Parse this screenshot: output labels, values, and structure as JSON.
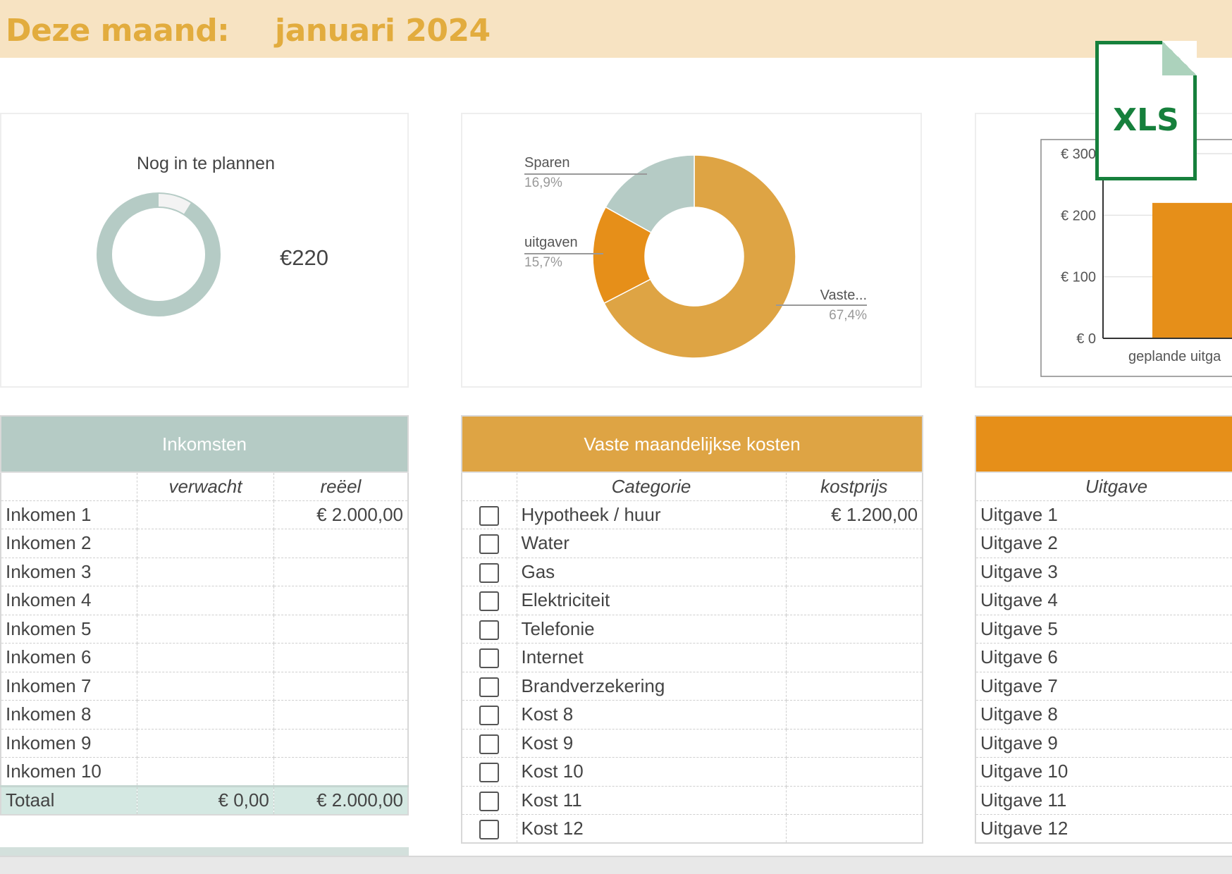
{
  "header": {
    "label": "Deze maand:",
    "month": "januari 2024"
  },
  "icon": {
    "file_type": "XLS",
    "name": "xls-file-icon"
  },
  "card_planning": {
    "title": "Nog in te plannen",
    "amount": "€220",
    "remaining_fraction": 0.089
  },
  "chart_data": [
    {
      "type": "pie",
      "donut": true,
      "categories": [
        "Vaste...",
        "uitgaven",
        "Sparen"
      ],
      "values": [
        67.4,
        15.7,
        16.9
      ],
      "labels": [
        "67,4%",
        "15,7%",
        "16,9%"
      ],
      "colors": [
        "#dea444",
        "#e68f19",
        "#b5cbc5"
      ]
    },
    {
      "type": "bar",
      "categories": [
        "geplande uitga"
      ],
      "values": [
        220
      ],
      "yticks": [
        "€ 0",
        "€ 100",
        "€ 200",
        "€ 300"
      ],
      "ylim": [
        0,
        300
      ],
      "color": "#e68f19"
    }
  ],
  "income": {
    "title": "Inkomsten",
    "col_expected": "verwacht",
    "col_real": "reëel",
    "rows": [
      {
        "name": "Inkomen 1",
        "expected": "",
        "real": "€ 2.000,00"
      },
      {
        "name": "Inkomen 2",
        "expected": "",
        "real": ""
      },
      {
        "name": "Inkomen 3",
        "expected": "",
        "real": ""
      },
      {
        "name": "Inkomen 4",
        "expected": "",
        "real": ""
      },
      {
        "name": "Inkomen 5",
        "expected": "",
        "real": ""
      },
      {
        "name": "Inkomen 6",
        "expected": "",
        "real": ""
      },
      {
        "name": "Inkomen 7",
        "expected": "",
        "real": ""
      },
      {
        "name": "Inkomen 8",
        "expected": "",
        "real": ""
      },
      {
        "name": "Inkomen 9",
        "expected": "",
        "real": ""
      },
      {
        "name": "Inkomen 10",
        "expected": "",
        "real": ""
      }
    ],
    "total": {
      "name": "Totaal",
      "expected": "€ 0,00",
      "real": "€ 2.000,00"
    }
  },
  "fixed_costs": {
    "title": "Vaste maandelijkse kosten",
    "col_category": "Categorie",
    "col_price": "kostprijs",
    "rows": [
      {
        "name": "Hypotheek / huur",
        "price": "€ 1.200,00"
      },
      {
        "name": "Water",
        "price": ""
      },
      {
        "name": "Gas",
        "price": ""
      },
      {
        "name": "Elektriciteit",
        "price": ""
      },
      {
        "name": "Telefonie",
        "price": ""
      },
      {
        "name": "Internet",
        "price": ""
      },
      {
        "name": "Brandverzekering",
        "price": ""
      },
      {
        "name": "Kost 8",
        "price": ""
      },
      {
        "name": "Kost 9",
        "price": ""
      },
      {
        "name": "Kost 10",
        "price": ""
      },
      {
        "name": "Kost 11",
        "price": ""
      },
      {
        "name": "Kost 12",
        "price": ""
      }
    ]
  },
  "expenses": {
    "title": "",
    "col_expense": "Uitgave",
    "rows": [
      "Uitgave 1",
      "Uitgave 2",
      "Uitgave 3",
      "Uitgave 4",
      "Uitgave 5",
      "Uitgave 6",
      "Uitgave 7",
      "Uitgave 8",
      "Uitgave 9",
      "Uitgave 10",
      "Uitgave 11",
      "Uitgave 12"
    ]
  }
}
